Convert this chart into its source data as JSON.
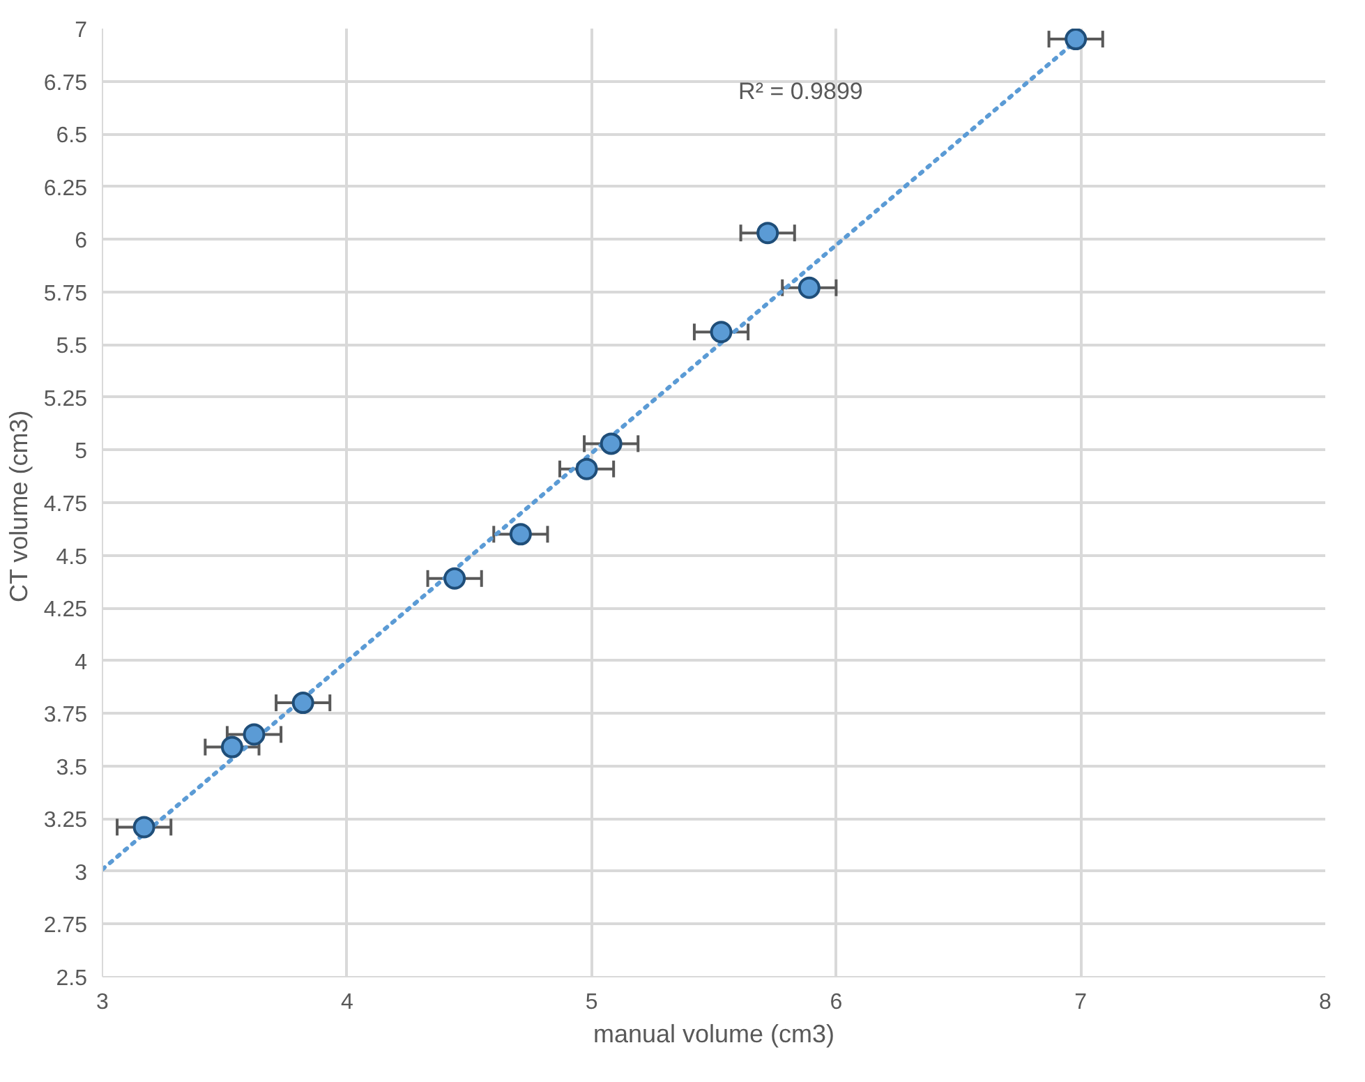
{
  "chart_data": {
    "type": "scatter",
    "xlabel": "manual volume (cm3)",
    "ylabel": "CT volume  (cm3)",
    "annotations": [
      "R² = 0.9899"
    ],
    "xlim": [
      3,
      8
    ],
    "xticks": [
      3,
      4,
      5,
      6,
      7,
      8
    ],
    "ylim": [
      2.5,
      7
    ],
    "yticks": [
      {
        "value": 2.5,
        "label": "2.5"
      },
      2.75,
      3,
      3.25,
      3.5,
      3.75,
      4,
      4.25,
      4.5,
      4.75,
      5,
      5.25,
      5.5,
      5.75,
      6,
      6.25,
      6.5,
      6.75,
      7
    ],
    "grid": true,
    "marker": "circle",
    "series": [
      {
        "color": "#5b9bd5",
        "x": [
          3.17,
          3.53,
          3.62,
          3.82,
          4.44,
          4.71,
          4.98,
          5.08,
          5.53,
          5.72,
          5.89,
          6.98
        ],
        "values": [
          3.21,
          3.59,
          3.65,
          3.8,
          4.39,
          4.6,
          4.91,
          5.03,
          5.56,
          6.03,
          5.77,
          6.95
        ],
        "xerrors": [
          0.11,
          0.11,
          0.11,
          0.11,
          0.11,
          0.11,
          0.11,
          0.11,
          0.11,
          0.11,
          0.11,
          0.11
        ]
      },
      {
        "type": "line",
        "color": "#5b9bd5",
        "line_style": "dotted",
        "marker": "none",
        "x": [
          3,
          7
        ],
        "values": [
          3.01,
          6.96
        ]
      }
    ]
  }
}
